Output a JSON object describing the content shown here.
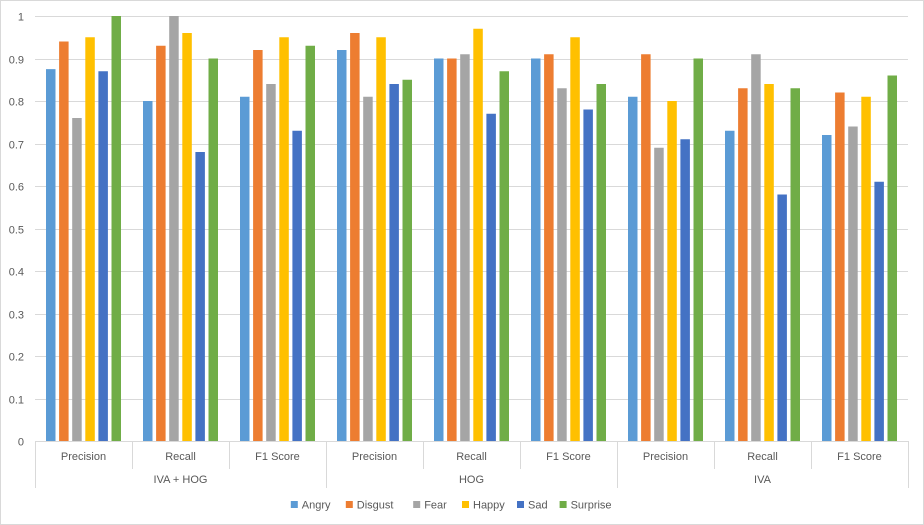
{
  "chart_data": {
    "type": "bar",
    "title": "",
    "xlabel": "",
    "ylabel": "",
    "ylim": [
      0,
      1
    ],
    "yticks": [
      "0",
      "0.1",
      "0.2",
      "0.3",
      "0.4",
      "0.5",
      "0.6",
      "0.7",
      "0.8",
      "0.9",
      "1"
    ],
    "groups": [
      {
        "label": "IVA + HOG",
        "categories": [
          "Precision",
          "Recall",
          "F1 Score"
        ]
      },
      {
        "label": "HOG",
        "categories": [
          "Precision",
          "Recall",
          "F1 Score"
        ]
      },
      {
        "label": "IVA",
        "categories": [
          "Precision",
          "Recall",
          "F1 Score"
        ]
      }
    ],
    "series": [
      {
        "name": "Angry",
        "color": "#5b9bd5",
        "values": [
          0.875,
          0.8,
          0.81,
          0.92,
          0.9,
          0.9,
          0.81,
          0.73,
          0.72
        ]
      },
      {
        "name": "Disgust",
        "color": "#ed7d31",
        "values": [
          0.94,
          0.93,
          0.92,
          0.96,
          0.9,
          0.91,
          0.91,
          0.83,
          0.82
        ]
      },
      {
        "name": "Fear",
        "color": "#a5a5a5",
        "values": [
          0.76,
          1.0,
          0.84,
          0.81,
          0.91,
          0.83,
          0.69,
          0.91,
          0.74
        ]
      },
      {
        "name": "Happy",
        "color": "#ffc000",
        "values": [
          0.95,
          0.96,
          0.95,
          0.95,
          0.97,
          0.95,
          0.8,
          0.84,
          0.81
        ]
      },
      {
        "name": "Sad",
        "color": "#4472c4",
        "values": [
          0.87,
          0.68,
          0.73,
          0.84,
          0.77,
          0.78,
          0.71,
          0.58,
          0.61
        ]
      },
      {
        "name": "Surprise",
        "color": "#70ad47",
        "values": [
          1.0,
          0.9,
          0.93,
          0.85,
          0.87,
          0.84,
          0.9,
          0.83,
          0.86
        ]
      }
    ],
    "legend_position": "bottom",
    "grid": true
  }
}
